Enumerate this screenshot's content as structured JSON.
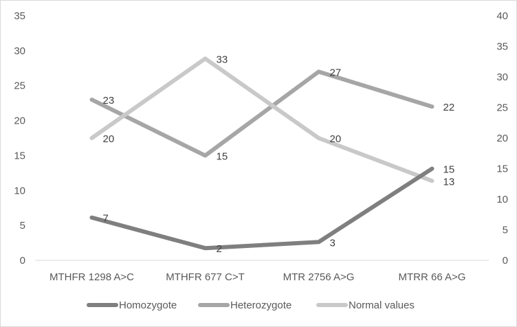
{
  "chart_data": {
    "type": "line",
    "title": "",
    "xlabel": "",
    "ylabel": "",
    "categories": [
      "MTHFR 1298 A>C",
      "MTHFR 677 C>T",
      "MTR 2756 A>G",
      "MTRR 66 A>G"
    ],
    "y_left": {
      "ylim": [
        0,
        35
      ],
      "ticks": [
        0,
        5,
        10,
        15,
        20,
        25,
        30,
        35
      ]
    },
    "y_right": {
      "ylim": [
        0,
        40
      ],
      "ticks": [
        0,
        5,
        10,
        15,
        20,
        25,
        30,
        35,
        40
      ]
    },
    "grid": false,
    "legend_position": "bottom",
    "series": [
      {
        "name": "Homozygote",
        "axis": "right",
        "values": [
          7,
          2,
          3,
          15
        ],
        "labels": [
          "7",
          "2",
          "3",
          "15"
        ],
        "color": "#7f7f7f"
      },
      {
        "name": "Heterozygote",
        "axis": "left",
        "values": [
          23,
          15,
          27,
          22
        ],
        "labels": [
          "23",
          "15",
          "27",
          "22"
        ],
        "color": "#a6a6a6"
      },
      {
        "name": "Normal values",
        "axis": "right",
        "values": [
          20,
          33,
          20,
          13
        ],
        "labels": [
          "20",
          "33",
          "20",
          "13"
        ],
        "color": "#c9c9c9"
      }
    ]
  }
}
